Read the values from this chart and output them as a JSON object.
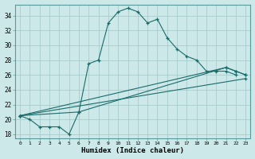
{
  "xlabel": "Humidex (Indice chaleur)",
  "background_color": "#cce8e8",
  "grid_color": "#aacccc",
  "line_color": "#1a6b6b",
  "xlim": [
    -0.5,
    23.5
  ],
  "ylim": [
    17.5,
    35.5
  ],
  "xticks": [
    0,
    1,
    2,
    3,
    4,
    5,
    6,
    7,
    8,
    9,
    10,
    11,
    12,
    13,
    14,
    15,
    16,
    17,
    18,
    19,
    20,
    21,
    22,
    23
  ],
  "yticks": [
    18,
    20,
    22,
    24,
    26,
    28,
    30,
    32,
    34
  ],
  "line1_x": [
    0,
    1,
    2,
    3,
    4,
    5,
    6,
    7,
    8,
    9,
    10,
    11,
    12,
    13,
    14,
    15,
    16,
    17,
    18,
    19,
    20,
    21,
    22
  ],
  "line1_y": [
    20.5,
    20.0,
    19.0,
    19.0,
    19.0,
    18.0,
    21.0,
    27.5,
    28.0,
    33.0,
    34.5,
    35.0,
    34.5,
    33.0,
    33.5,
    31.0,
    29.5,
    28.5,
    28.0,
    26.5,
    26.5,
    26.5,
    26.0
  ],
  "line2_x": [
    0,
    23
  ],
  "line2_y": [
    20.5,
    25.5
  ],
  "line3_x": [
    0,
    21,
    22,
    23
  ],
  "line3_y": [
    20.5,
    27.0,
    26.5,
    26.0
  ],
  "line4_x": [
    0,
    6,
    21,
    22,
    23
  ],
  "line4_y": [
    20.5,
    21.0,
    27.0,
    26.5,
    26.0
  ]
}
